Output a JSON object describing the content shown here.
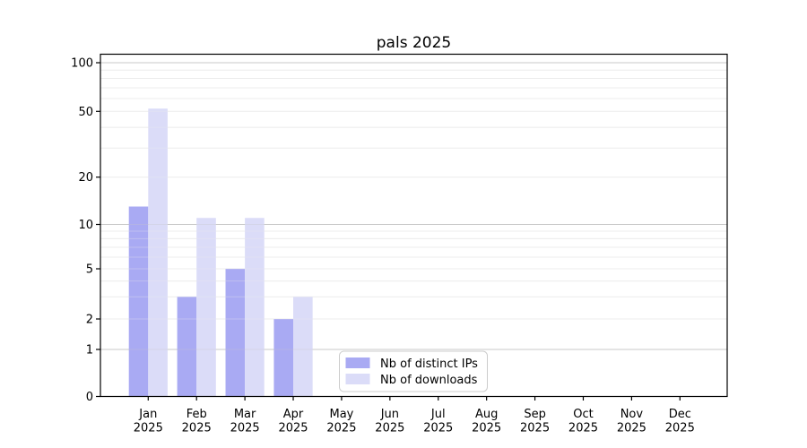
{
  "title": "pals 2025",
  "chart_data": {
    "type": "bar",
    "categories": [
      "Jan",
      "Feb",
      "Mar",
      "Apr",
      "May",
      "Jun",
      "Jul",
      "Aug",
      "Sep",
      "Oct",
      "Nov",
      "Dec"
    ],
    "year_label": "2025",
    "series": [
      {
        "name": "Nb of distinct IPs",
        "color": "#a9aaf3",
        "values": [
          13,
          3,
          5,
          2,
          0,
          0,
          0,
          0,
          0,
          0,
          0,
          0
        ]
      },
      {
        "name": "Nb of downloads",
        "color": "#dbdcf8",
        "values": [
          52,
          11,
          11,
          3,
          0,
          0,
          0,
          0,
          0,
          0,
          0,
          0
        ]
      }
    ],
    "title": "pals 2025",
    "xlabel": "",
    "ylabel": "",
    "yscale": "log-like (0,1 then logarithmic)",
    "ylim": [
      0,
      113
    ],
    "yticks": [
      0,
      1,
      2,
      5,
      10,
      20,
      50,
      100
    ],
    "major_grid_values": [
      1,
      10,
      100
    ],
    "minor_grid_values": [
      2,
      3,
      4,
      5,
      6,
      7,
      8,
      9,
      20,
      30,
      40,
      50,
      60,
      70,
      80,
      90
    ],
    "grid": "on",
    "legend_position": "bottom-left-of-center inside plot"
  },
  "colors": {
    "distinct_ips_bar": "#a9aaf3",
    "downloads_bar": "#dbdcf8",
    "major_gridline": "#c8c8c8",
    "minor_gridline": "#ececec",
    "axis_spine": "#000000",
    "legend_border": "#cccccc",
    "background": "#ffffff"
  }
}
